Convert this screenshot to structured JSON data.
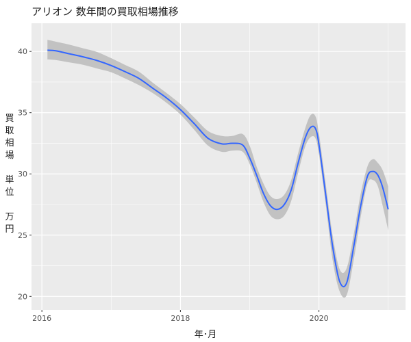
{
  "chart_data": {
    "type": "line",
    "title": "アリオン 数年間の買取相場推移",
    "xlabel": "年･月",
    "ylabel": "買取相場 単位 万円",
    "ylabel_lines": [
      "買",
      "取",
      "相",
      "場",
      "",
      "単",
      "位",
      "",
      "万",
      "円"
    ],
    "xlim": [
      2015.85,
      2021.25
    ],
    "ylim": [
      18.9,
      42.3
    ],
    "x_ticks": [
      2016,
      2018,
      2020
    ],
    "x_tick_labels": [
      "2016",
      "2018",
      "2020"
    ],
    "y_ticks": [
      20,
      25,
      30,
      35,
      40
    ],
    "y_tick_labels": [
      "20",
      "25",
      "30",
      "35",
      "40"
    ],
    "grid": true,
    "background": "#EBEBEB",
    "colors": {
      "line": "#3366FF",
      "band": "#BEBEBE",
      "grid": "#FFFFFF",
      "text": "#4D4D4D"
    },
    "series": [
      {
        "x": [
          2016.08,
          2016.2,
          2016.4,
          2016.6,
          2016.8,
          2017.0,
          2017.2,
          2017.4,
          2017.6,
          2017.8,
          2018.0,
          2018.2,
          2018.4,
          2018.6,
          2018.75,
          2018.9,
          2019.0,
          2019.1,
          2019.2,
          2019.3,
          2019.4,
          2019.5,
          2019.6,
          2019.7,
          2019.8,
          2019.88,
          2019.95,
          2020.0,
          2020.1,
          2020.2,
          2020.3,
          2020.4,
          2020.5,
          2020.6,
          2020.7,
          2020.78,
          2020.85,
          2020.92,
          2021.0
        ],
        "y": [
          40.1,
          40.05,
          39.8,
          39.55,
          39.25,
          38.85,
          38.35,
          37.8,
          37.0,
          36.2,
          35.25,
          34.1,
          32.9,
          32.45,
          32.5,
          32.35,
          31.3,
          29.9,
          28.4,
          27.4,
          27.1,
          27.5,
          28.7,
          30.9,
          32.9,
          33.8,
          33.7,
          32.4,
          28.2,
          24.0,
          21.2,
          21.1,
          24.0,
          27.3,
          29.8,
          30.2,
          29.9,
          28.9,
          27.1
        ],
        "band_lower": [
          39.35,
          39.3,
          39.1,
          38.9,
          38.6,
          38.3,
          37.8,
          37.25,
          36.6,
          35.8,
          34.85,
          33.6,
          32.3,
          31.8,
          31.9,
          31.8,
          30.8,
          29.3,
          27.7,
          26.6,
          26.3,
          26.6,
          27.8,
          30.1,
          32.2,
          33.0,
          32.9,
          31.6,
          27.4,
          22.9,
          20.4,
          20.1,
          22.9,
          26.4,
          29.2,
          29.5,
          29.0,
          27.4,
          25.4
        ],
        "band_upper": [
          40.95,
          40.8,
          40.55,
          40.25,
          39.95,
          39.45,
          38.9,
          38.35,
          37.45,
          36.6,
          35.7,
          34.6,
          33.5,
          33.1,
          33.1,
          33.25,
          32.3,
          30.6,
          29.2,
          28.2,
          27.95,
          28.3,
          29.5,
          31.7,
          33.7,
          34.8,
          34.7,
          33.3,
          29.1,
          24.9,
          22.2,
          22.3,
          25.0,
          28.3,
          30.6,
          31.2,
          30.9,
          30.3,
          29.0
        ]
      }
    ]
  }
}
